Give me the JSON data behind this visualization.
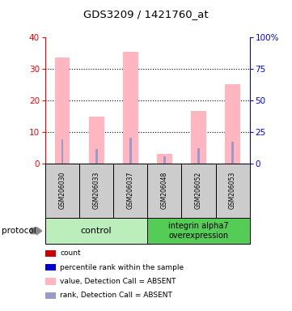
{
  "title": "GDS3209 / 1421760_at",
  "samples": [
    "GSM206030",
    "GSM206033",
    "GSM206037",
    "GSM206048",
    "GSM206052",
    "GSM206053"
  ],
  "bar_values": [
    33.5,
    14.8,
    35.5,
    3.0,
    16.5,
    25.2
  ],
  "rank_values": [
    19.0,
    11.0,
    20.0,
    5.8,
    12.0,
    17.0
  ],
  "bar_color": "#ffb6c1",
  "rank_color": "#9999cc",
  "ylim_left": [
    0,
    40
  ],
  "ylim_right": [
    0,
    100
  ],
  "yticks_left": [
    0,
    10,
    20,
    30,
    40
  ],
  "yticks_right": [
    0,
    25,
    50,
    75,
    100
  ],
  "yticklabels_right": [
    "0",
    "25",
    "50",
    "75",
    "100%"
  ],
  "background_color": "#ffffff",
  "sample_box_color": "#cccccc",
  "group1_color": "#bbeebb",
  "group2_color": "#55cc55",
  "legend_items": [
    {
      "label": "count",
      "color": "#cc0000"
    },
    {
      "label": "percentile rank within the sample",
      "color": "#0000cc"
    },
    {
      "label": "value, Detection Call = ABSENT",
      "color": "#ffb6c1"
    },
    {
      "label": "rank, Detection Call = ABSENT",
      "color": "#9999cc"
    }
  ]
}
